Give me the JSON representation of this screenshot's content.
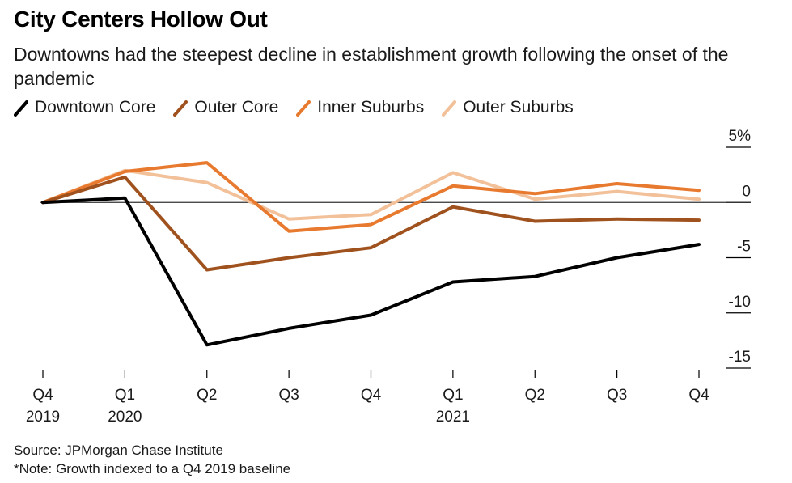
{
  "chart_data": {
    "type": "line",
    "title": "City Centers Hollow Out",
    "subtitle": "Downtowns had the steepest decline in establishment growth following the onset of the pandemic",
    "categories": [
      "Q4 2019",
      "Q1 2020",
      "Q2",
      "Q3",
      "Q4",
      "Q1 2021",
      "Q2",
      "Q3",
      "Q4"
    ],
    "x_tick_labels": [
      [
        "Q4",
        "2019"
      ],
      [
        "Q1",
        "2020"
      ],
      [
        "Q2",
        ""
      ],
      [
        "Q3",
        ""
      ],
      [
        "Q4",
        ""
      ],
      [
        "Q1",
        "2021"
      ],
      [
        "Q2",
        ""
      ],
      [
        "Q3",
        ""
      ],
      [
        "Q4",
        ""
      ]
    ],
    "y_ticks": [
      5,
      0,
      -5,
      -10,
      -15
    ],
    "y_tick_labels": [
      "5%",
      "0",
      "-5",
      "-10",
      "-15"
    ],
    "ylim": [
      -15,
      5
    ],
    "baseline": 0,
    "grid": false,
    "legend_position": "top",
    "series": [
      {
        "name": "Downtown Core",
        "color": "#000000",
        "values": [
          0,
          0.4,
          -12.9,
          -11.4,
          -10.2,
          -7.2,
          -6.7,
          -5.0,
          -3.8
        ]
      },
      {
        "name": "Outer Core",
        "color": "#a0521e",
        "values": [
          0,
          2.3,
          -6.1,
          -5.0,
          -4.1,
          -0.4,
          -1.7,
          -1.5,
          -1.6
        ]
      },
      {
        "name": "Inner Suburbs",
        "color": "#e87a2f",
        "values": [
          0,
          2.8,
          3.6,
          -2.6,
          -2.0,
          1.5,
          0.8,
          1.7,
          1.1
        ]
      },
      {
        "name": "Outer Suburbs",
        "color": "#f2c19a",
        "values": [
          0,
          2.9,
          1.8,
          -1.5,
          -1.1,
          2.7,
          0.3,
          1.0,
          0.3
        ]
      }
    ]
  },
  "footer": {
    "source": "Source: JPMorgan Chase Institute",
    "note": "*Note: Growth indexed to a Q4 2019 baseline"
  }
}
